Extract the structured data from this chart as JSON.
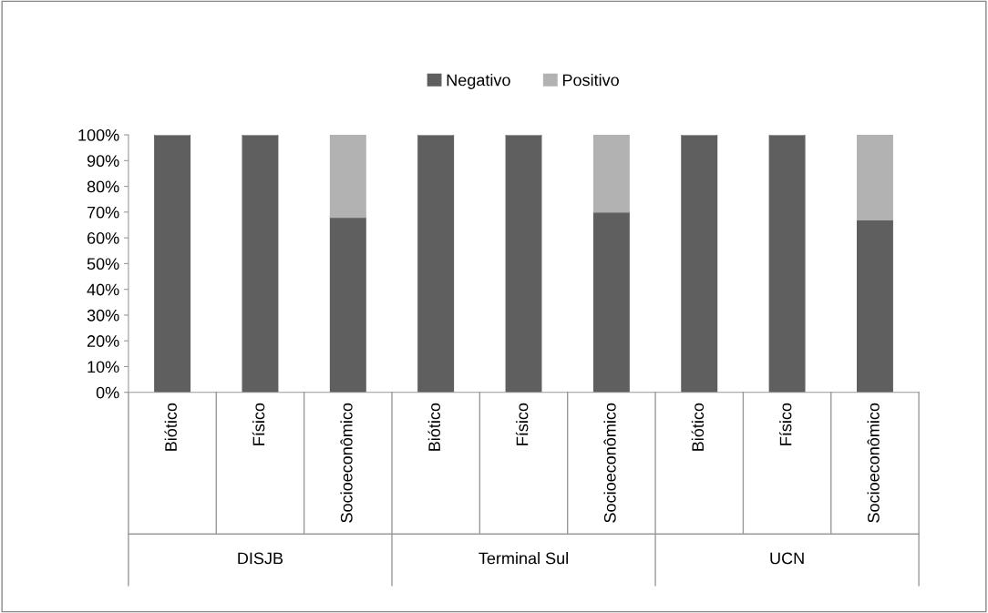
{
  "chart_data": {
    "type": "bar",
    "stacked": true,
    "categories": [
      "Biótico",
      "Físico",
      "Socioeconômico",
      "Biótico",
      "Físico",
      "Socioeconômico",
      "Biótico",
      "Físico",
      "Socioeconômico"
    ],
    "series": [
      {
        "name": "Negativo",
        "color": "#5f5f5f",
        "values": [
          100,
          100,
          68,
          100,
          100,
          70,
          100,
          100,
          67
        ]
      },
      {
        "name": "Positivo",
        "color": "#b2b2b2",
        "values": [
          0,
          0,
          32,
          0,
          0,
          30,
          0,
          0,
          33
        ]
      }
    ],
    "annotations": [
      "DISJB",
      "Terminal Sul",
      "UCN"
    ],
    "ylim": [
      0,
      100
    ],
    "yticks": [
      {
        "value": 0,
        "label": "0%"
      },
      {
        "value": 10,
        "label": "10%"
      },
      {
        "value": 20,
        "label": "20%"
      },
      {
        "value": 30,
        "label": "30%"
      },
      {
        "value": 40,
        "label": "40%"
      },
      {
        "value": 50,
        "label": "50%"
      },
      {
        "value": 60,
        "label": "60%"
      },
      {
        "value": 70,
        "label": "70%"
      },
      {
        "value": 80,
        "label": "80%"
      },
      {
        "value": 90,
        "label": "90%"
      },
      {
        "value": 100,
        "label": "100%"
      }
    ],
    "grid": false,
    "legend": "top"
  }
}
